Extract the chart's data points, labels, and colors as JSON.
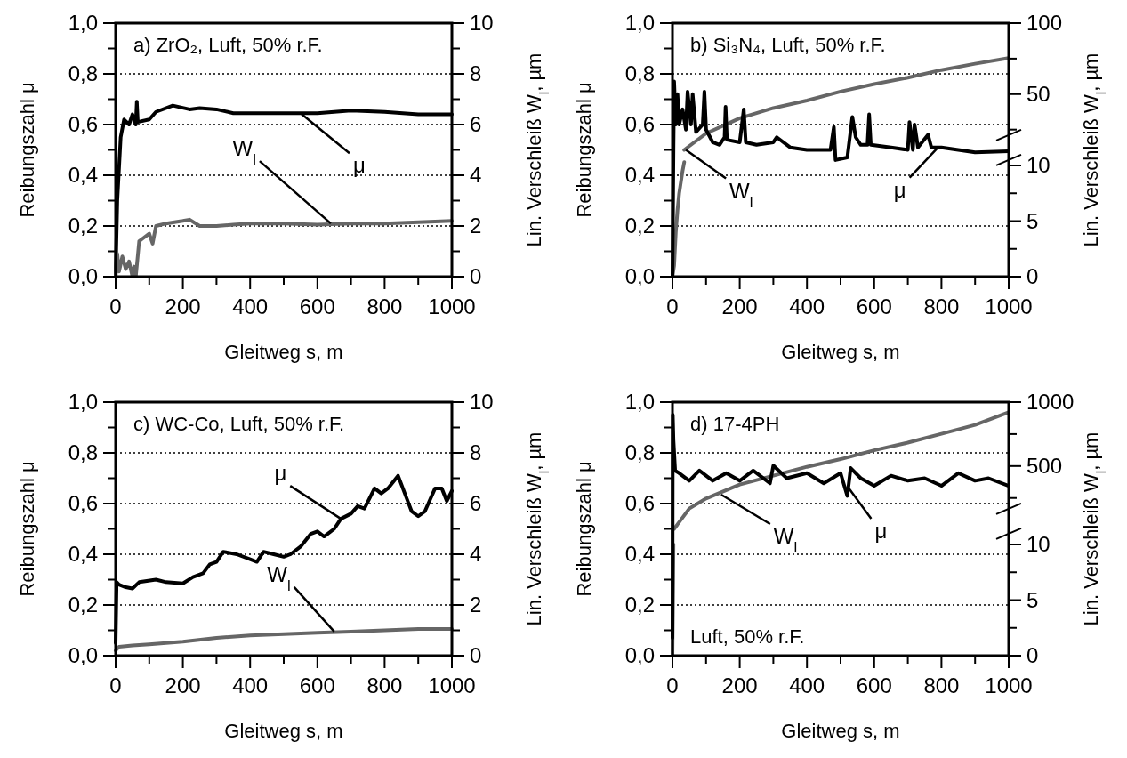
{
  "chart_data": [
    {
      "type": "line",
      "title": "a) ZrO₂, Luft, 50% r.F.",
      "xlabel": "Gleitweg s, m",
      "ylabel": "Reibungszahl μ",
      "y2label": "Lin. Verschleiß W$_{l}$, µm",
      "grid": "y",
      "xlim": [
        0,
        1000
      ],
      "xticks": [
        0,
        {
          "value": 100,
          "label": null
        },
        200,
        {
          "value": 300,
          "label": null
        },
        400,
        {
          "value": 500,
          "label": null
        },
        600,
        {
          "value": 700,
          "label": null
        },
        800,
        {
          "value": 900,
          "label": null
        },
        1000
      ],
      "ylim": [
        0,
        1
      ],
      "yticks": [
        {
          "value": 0,
          "label": "0,0"
        },
        {
          "value": 0.1,
          "label": null
        },
        {
          "value": 0.2,
          "label": "0,2"
        },
        {
          "value": 0.3,
          "label": null
        },
        {
          "value": 0.4,
          "label": "0,4"
        },
        {
          "value": 0.5,
          "label": null
        },
        {
          "value": 0.6,
          "label": "0,6"
        },
        {
          "value": 0.7,
          "label": null
        },
        {
          "value": 0.8,
          "label": "0,8"
        },
        {
          "value": 0.9,
          "label": null
        },
        {
          "value": 1,
          "label": "1,0"
        }
      ],
      "y2lim": [
        0,
        10
      ],
      "y2ticks": [
        0,
        {
          "value": 1,
          "label": null
        },
        2,
        {
          "value": 3,
          "label": null
        },
        4,
        {
          "value": 5,
          "label": null
        },
        6,
        {
          "value": 7,
          "label": null
        },
        8,
        {
          "value": 9,
          "label": null
        },
        10
      ],
      "series": [
        {
          "color": "#000000",
          "x": [
            0,
            5,
            15,
            25,
            40,
            50,
            60,
            63,
            66,
            100,
            120,
            170,
            220,
            250,
            300,
            350,
            400,
            500,
            600,
            700,
            800,
            900,
            1000
          ],
          "values": [
            0,
            0.3,
            0.55,
            0.62,
            0.6,
            0.64,
            0.6,
            0.69,
            0.61,
            0.62,
            0.65,
            0.675,
            0.66,
            0.665,
            0.66,
            0.645,
            0.645,
            0.645,
            0.645,
            0.655,
            0.65,
            0.64,
            0.64
          ]
        },
        {
          "color": "#666666",
          "axis": "y2",
          "x": [
            0,
            5,
            10,
            20,
            30,
            40,
            50,
            55,
            60,
            70,
            80,
            100,
            110,
            120,
            150,
            200,
            220,
            250,
            300,
            350,
            400,
            500,
            600,
            700,
            800,
            900,
            1000
          ],
          "values": [
            0,
            0.9,
            0.2,
            0.8,
            0.3,
            0.6,
            0,
            0.4,
            0,
            1.4,
            1.5,
            1.7,
            1.3,
            2,
            2.1,
            2.2,
            2.25,
            2.0,
            2.0,
            2.05,
            2.1,
            2.1,
            2.05,
            2.1,
            2.1,
            2.15,
            2.2
          ]
        }
      ],
      "annotations": [
        {
          "text": "μ",
          "x": 550,
          "y": 0.645
        },
        {
          "text": "W$_{l}$",
          "x": 640,
          "y": 0.21
        }
      ]
    },
    {
      "type": "line",
      "title": "b) Si₃N₄, Luft, 50% r.F.",
      "xlabel": "Gleitweg s, m",
      "ylabel": "Reibungszahl μ",
      "y2label": "Lin. Verschleiß W$_{l}$, µm",
      "grid": "y",
      "xlim": [
        0,
        1000
      ],
      "xticks": [
        0,
        {
          "value": 100,
          "label": null
        },
        200,
        {
          "value": 300,
          "label": null
        },
        400,
        {
          "value": 500,
          "label": null
        },
        600,
        {
          "value": 700,
          "label": null
        },
        800,
        {
          "value": 900,
          "label": null
        },
        1000
      ],
      "ylim": [
        0,
        1
      ],
      "yticks": [
        {
          "value": 0,
          "label": "0,0"
        },
        {
          "value": 0.1,
          "label": null
        },
        {
          "value": 0.2,
          "label": "0,2"
        },
        {
          "value": 0.3,
          "label": null
        },
        {
          "value": 0.4,
          "label": "0,4"
        },
        {
          "value": 0.5,
          "label": null
        },
        {
          "value": 0.6,
          "label": "0,6"
        },
        {
          "value": 0.7,
          "label": null
        },
        {
          "value": 0.8,
          "label": "0,8"
        },
        {
          "value": 0.9,
          "label": null
        },
        {
          "value": 1,
          "label": "1,0"
        }
      ],
      "y2lim": [
        0,
        22.8
      ],
      "y2ticks": [
        0,
        {
          "value": 2.5,
          "label": null
        },
        5,
        {
          "value": 7.5,
          "label": null
        },
        10
      ],
      "y3lim": [
        -78.6,
        100
      ],
      "y3ticks": [
        {
          "value": 25,
          "label": null
        },
        50,
        {
          "value": 75,
          "label": null
        },
        100
      ],
      "series": [
        {
          "color": "#666666",
          "axis": "y2",
          "x": [
            0,
            5,
            10,
            15,
            20,
            25,
            30,
            35
          ],
          "values": [
            0,
            1,
            4,
            6,
            7.5,
            8.5,
            9.5,
            10.3
          ]
        },
        {
          "color": "#666666",
          "axis": "y3",
          "x": [
            35,
            100,
            200,
            300,
            400,
            500,
            600,
            700,
            800,
            900,
            1000
          ],
          "values": [
            10.7,
            22.3,
            33,
            40.2,
            45.5,
            51.8,
            57.1,
            61.6,
            67,
            71.4,
            75.4
          ]
        },
        {
          "color": "#000000",
          "x": [
            0,
            3,
            5,
            10,
            15,
            20,
            30,
            40,
            45,
            55,
            60,
            70,
            90,
            95,
            100,
            120,
            140,
            155,
            158,
            162,
            200,
            212,
            218,
            250,
            300,
            310,
            350,
            400,
            470,
            480,
            485,
            520,
            535,
            545,
            560,
            580,
            585,
            590,
            650,
            700,
            705,
            715,
            720,
            730,
            760,
            770,
            800,
            900,
            1000
          ],
          "values": [
            0,
            0.5,
            0.77,
            0.6,
            0.72,
            0.6,
            0.66,
            0.58,
            0.73,
            0.6,
            0.72,
            0.57,
            0.6,
            0.73,
            0.58,
            0.53,
            0.52,
            0.55,
            0.67,
            0.54,
            0.53,
            0.66,
            0.53,
            0.52,
            0.53,
            0.55,
            0.51,
            0.5,
            0.5,
            0.59,
            0.46,
            0.47,
            0.63,
            0.55,
            0.52,
            0.52,
            0.64,
            0.52,
            0.51,
            0.5,
            0.61,
            0.5,
            0.6,
            0.51,
            0.56,
            0.51,
            0.51,
            0.49,
            0.495
          ]
        }
      ],
      "annotations": [
        {
          "text": "W$_{l}$",
          "x": 40,
          "y": 0.5
        },
        {
          "text": "μ",
          "x": 790,
          "y": 0.51
        }
      ]
    },
    {
      "type": "line",
      "title": "c) WC-Co, Luft, 50% r.F.",
      "xlabel": "Gleitweg s, m",
      "ylabel": "Reibungszahl μ",
      "y2label": "Lin. Verschleiß W$_{l}$, µm",
      "grid": "y",
      "xlim": [
        0,
        1000
      ],
      "xticks": [
        0,
        {
          "value": 100,
          "label": null
        },
        200,
        {
          "value": 300,
          "label": null
        },
        400,
        {
          "value": 500,
          "label": null
        },
        600,
        {
          "value": 700,
          "label": null
        },
        800,
        {
          "value": 900,
          "label": null
        },
        1000
      ],
      "ylim": [
        0,
        1
      ],
      "yticks": [
        {
          "value": 0,
          "label": "0,0"
        },
        {
          "value": 0.1,
          "label": null
        },
        {
          "value": 0.2,
          "label": "0,2"
        },
        {
          "value": 0.3,
          "label": null
        },
        {
          "value": 0.4,
          "label": "0,4"
        },
        {
          "value": 0.5,
          "label": null
        },
        {
          "value": 0.6,
          "label": "0,6"
        },
        {
          "value": 0.7,
          "label": null
        },
        {
          "value": 0.8,
          "label": "0,8"
        },
        {
          "value": 0.9,
          "label": null
        },
        {
          "value": 1,
          "label": "1,0"
        }
      ],
      "y2lim": [
        0,
        10
      ],
      "y2ticks": [
        0,
        {
          "value": 1,
          "label": null
        },
        2,
        {
          "value": 3,
          "label": null
        },
        4,
        {
          "value": 5,
          "label": null
        },
        6,
        {
          "value": 7,
          "label": null
        },
        8,
        {
          "value": 9,
          "label": null
        },
        10
      ],
      "series": [
        {
          "color": "#000000",
          "x": [
            0,
            3,
            10,
            30,
            50,
            70,
            120,
            150,
            200,
            230,
            260,
            280,
            300,
            320,
            360,
            400,
            420,
            440,
            470,
            500,
            520,
            550,
            580,
            600,
            620,
            650,
            670,
            700,
            720,
            740,
            770,
            790,
            810,
            840,
            860,
            880,
            900,
            920,
            950,
            970,
            985,
            1000
          ],
          "values": [
            0.05,
            0.29,
            0.28,
            0.27,
            0.265,
            0.29,
            0.3,
            0.29,
            0.285,
            0.31,
            0.325,
            0.36,
            0.37,
            0.41,
            0.4,
            0.38,
            0.37,
            0.41,
            0.4,
            0.39,
            0.4,
            0.43,
            0.48,
            0.49,
            0.47,
            0.5,
            0.54,
            0.56,
            0.59,
            0.58,
            0.66,
            0.64,
            0.66,
            0.71,
            0.64,
            0.57,
            0.55,
            0.57,
            0.66,
            0.66,
            0.61,
            0.65
          ]
        },
        {
          "color": "#666666",
          "axis": "y2",
          "x": [
            0,
            10,
            50,
            100,
            200,
            300,
            400,
            500,
            600,
            700,
            800,
            900,
            1000
          ],
          "values": [
            0.2,
            0.35,
            0.4,
            0.45,
            0.55,
            0.7,
            0.8,
            0.85,
            0.9,
            0.95,
            1,
            1.05,
            1.05
          ]
        }
      ],
      "annotations": [
        {
          "text": "μ",
          "x": 670,
          "y": 0.54
        },
        {
          "text": "W$_{l}$",
          "x": 650,
          "y": 0.095
        }
      ]
    },
    {
      "type": "line",
      "title": "d) 17-4PH",
      "xlabel": "Gleitweg s, m",
      "ylabel": "Reibungszahl μ",
      "y2label": "Lin. Verschleiß W$_{l}$, µm",
      "grid": "y",
      "xlim": [
        0,
        1000
      ],
      "xticks": [
        0,
        {
          "value": 100,
          "label": null
        },
        200,
        {
          "value": 300,
          "label": null
        },
        400,
        {
          "value": 500,
          "label": null
        },
        600,
        {
          "value": 700,
          "label": null
        },
        800,
        {
          "value": 900,
          "label": null
        },
        1000
      ],
      "ylim": [
        0,
        1
      ],
      "yticks": [
        {
          "value": 0,
          "label": "0,0"
        },
        {
          "value": 0.1,
          "label": null
        },
        {
          "value": 0.2,
          "label": "0,2"
        },
        {
          "value": 0.3,
          "label": null
        },
        {
          "value": 0.4,
          "label": "0,4"
        },
        {
          "value": 0.5,
          "label": null
        },
        {
          "value": 0.6,
          "label": "0,6"
        },
        {
          "value": 0.7,
          "label": null
        },
        {
          "value": 0.8,
          "label": "0,8"
        },
        {
          "value": 0.9,
          "label": null
        },
        {
          "value": 1,
          "label": "1,0"
        }
      ],
      "y2lim": [
        0,
        22.8
      ],
      "y2ticks": [
        0,
        {
          "value": 2.5,
          "label": null
        },
        5,
        {
          "value": 7.5,
          "label": null
        },
        10
      ],
      "y3lim": [
        -984,
        1000
      ],
      "y3ticks": [
        {
          "value": 250,
          "label": null
        },
        500,
        {
          "value": 750,
          "label": null
        },
        1000
      ],
      "series": [
        {
          "color": "#666666",
          "axis": "y2",
          "x": [
            0,
            3
          ],
          "values": [
            0,
            10
          ]
        },
        {
          "color": "#666666",
          "axis": "y3",
          "x": [
            5,
            50,
            100,
            200,
            300,
            400,
            500,
            600,
            700,
            800,
            900,
            1000
          ],
          "values": [
            8,
            167,
            246,
            355,
            425,
            494,
            554,
            623,
            683,
            752,
            822,
            921
          ]
        },
        {
          "color": "#000000",
          "x": [
            0,
            1,
            3,
            8,
            20,
            50,
            80,
            120,
            160,
            200,
            240,
            290,
            300,
            340,
            400,
            450,
            500,
            520,
            530,
            560,
            600,
            650,
            700,
            750,
            800,
            850,
            900,
            940,
            1000
          ],
          "values": [
            0.07,
            0.95,
            0.85,
            0.73,
            0.72,
            0.69,
            0.73,
            0.69,
            0.72,
            0.69,
            0.73,
            0.68,
            0.75,
            0.7,
            0.72,
            0.68,
            0.72,
            0.63,
            0.74,
            0.7,
            0.67,
            0.71,
            0.69,
            0.7,
            0.67,
            0.72,
            0.69,
            0.7,
            0.67
          ]
        }
      ],
      "annotations": [
        {
          "text": "W$_{l}$",
          "x": 145,
          "y": 0.635
        },
        {
          "text": "μ",
          "x": 525,
          "y": 0.66
        },
        "Luft, 50% r.F."
      ]
    }
  ]
}
